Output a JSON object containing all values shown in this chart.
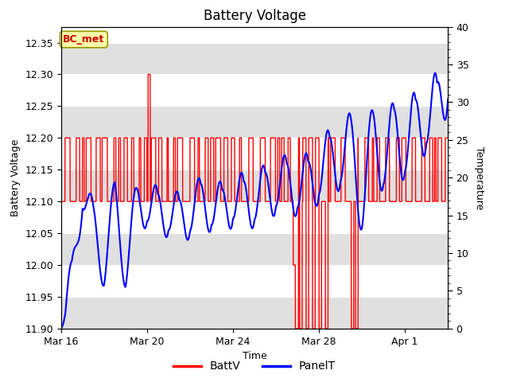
{
  "title": "Battery Voltage",
  "xlabel": "Time",
  "ylabel_left": "Battery Voltage",
  "ylabel_right": "Temperature",
  "ylim_left": [
    11.9,
    12.375
  ],
  "ylim_right": [
    0,
    40
  ],
  "yticks_left": [
    11.9,
    11.95,
    12.0,
    12.05,
    12.1,
    12.15,
    12.2,
    12.25,
    12.3,
    12.35
  ],
  "yticks_right": [
    0,
    5,
    10,
    15,
    20,
    25,
    30,
    35,
    40
  ],
  "xlim_days": [
    0,
    18
  ],
  "x_tick_labels": [
    "Mar 16",
    "Mar 20",
    "Mar 24",
    "Mar 28",
    "Apr 1"
  ],
  "x_tick_positions": [
    0,
    4,
    8,
    12,
    16
  ],
  "annotation_text": "BC_met",
  "annotation_bg": "#FFFFAA",
  "annotation_border": "#999900",
  "annotation_text_color": "#CC0000",
  "batt_color": "#FF0000",
  "panel_color": "#0000FF",
  "legend_labels": [
    "BattV",
    "PanelT"
  ],
  "title_fontsize": 12,
  "axis_label_fontsize": 9,
  "tick_fontsize": 9,
  "gray_band_color": "#E0E0E0",
  "white_band_color": "#FFFFFF",
  "band_boundaries": [
    11.9,
    11.95,
    12.0,
    12.05,
    12.1,
    12.15,
    12.2,
    12.25,
    12.3,
    12.35,
    12.375
  ]
}
